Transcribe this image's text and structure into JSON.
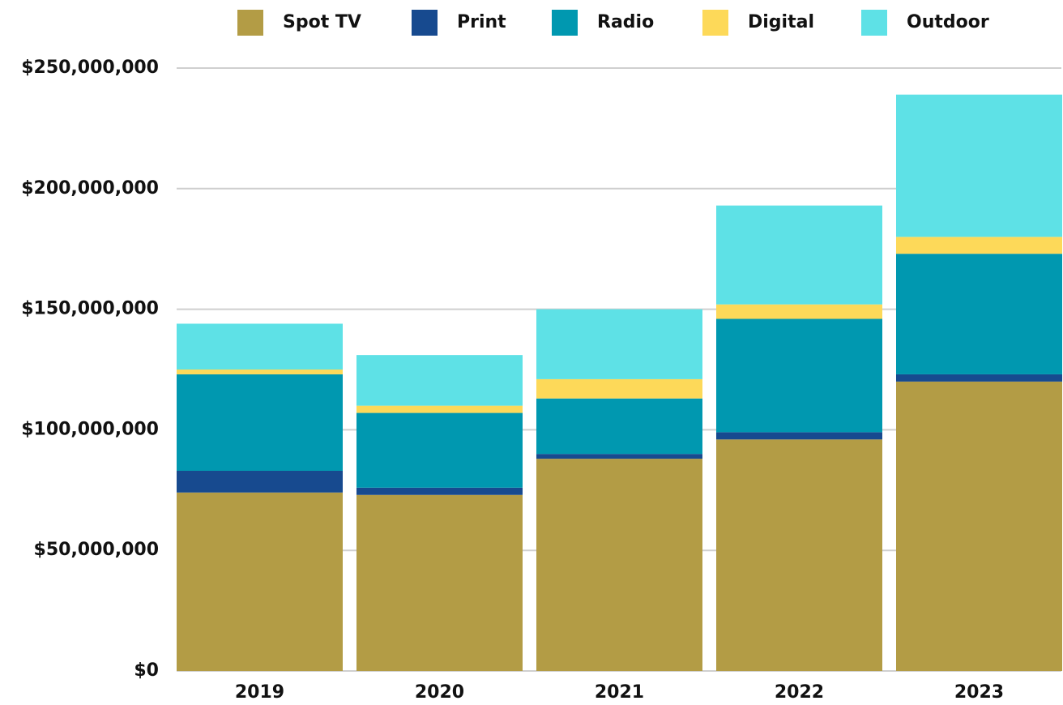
{
  "chart_data": {
    "type": "stacked_bar",
    "categories": [
      "2019",
      "2020",
      "2021",
      "2022",
      "2023"
    ],
    "series": [
      {
        "name": "Spot TV",
        "color": "#b39c45",
        "values": [
          74000000,
          73000000,
          88000000,
          96000000,
          120000000
        ]
      },
      {
        "name": "Print",
        "color": "#174a8f",
        "values": [
          9000000,
          3000000,
          2000000,
          3000000,
          3000000
        ]
      },
      {
        "name": "Radio",
        "color": "#0098b0",
        "values": [
          40000000,
          31000000,
          23000000,
          47000000,
          50000000
        ]
      },
      {
        "name": "Digital",
        "color": "#fdd959",
        "values": [
          2000000,
          3000000,
          8000000,
          6000000,
          7000000
        ]
      },
      {
        "name": "Outdoor",
        "color": "#5ee1e6",
        "values": [
          19000000,
          21000000,
          29000000,
          41000000,
          59000000
        ]
      }
    ],
    "ylim": [
      0,
      250000000
    ],
    "yticks": [
      {
        "value": 0,
        "label": "$0"
      },
      {
        "value": 50000000,
        "label": "$50,000,000"
      },
      {
        "value": 100000000,
        "label": "$100,000,000"
      },
      {
        "value": 150000000,
        "label": "$150,000,000"
      },
      {
        "value": 200000000,
        "label": "$200,000,000"
      },
      {
        "value": 250000000,
        "label": "$250,000,000"
      }
    ],
    "grid": true,
    "legend": "top"
  }
}
